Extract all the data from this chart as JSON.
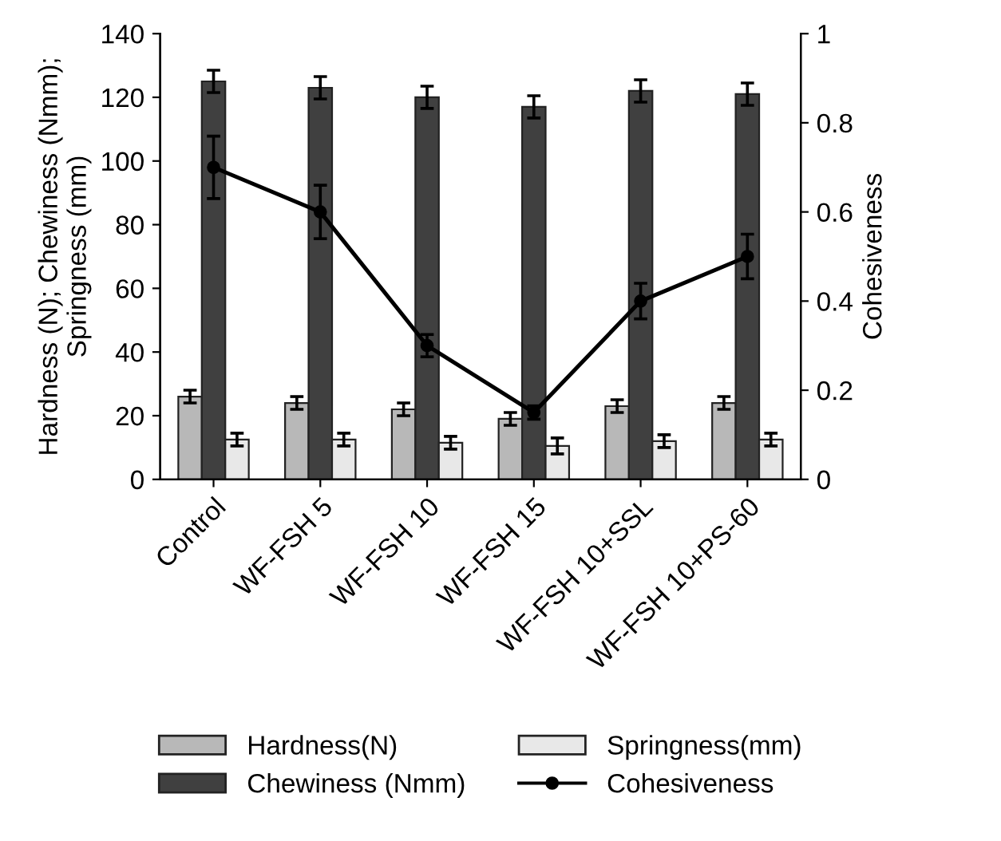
{
  "chart_data": {
    "type": "bar",
    "categories": [
      "Control",
      "WF-FSH 5",
      "WF-FSH 10",
      "WF-FSH 15",
      "WF-FSH 10+SSL",
      "WF-FSH 10+PS-60"
    ],
    "series": [
      {
        "name": "Hardness(N)",
        "color": "#b8b8b8",
        "values": [
          26,
          24,
          22,
          19,
          23,
          24
        ],
        "errors": [
          2,
          2,
          2,
          2,
          2,
          2
        ]
      },
      {
        "name": "Chewiness (Nmm)",
        "color": "#404040",
        "values": [
          125,
          123,
          120,
          117,
          122,
          121
        ],
        "errors": [
          3.5,
          3.5,
          3.5,
          3.5,
          3.5,
          3.5
        ]
      },
      {
        "name": "Springness(mm)",
        "color": "#e8e8e8",
        "values": [
          12.5,
          12.5,
          11.5,
          10.5,
          12,
          12.5
        ],
        "errors": [
          2,
          2,
          2,
          2.5,
          2,
          2
        ]
      },
      {
        "name": "Cohesiveness",
        "color": "#000000",
        "type": "line",
        "axis": "y2",
        "marker": "circle",
        "values": [
          0.7,
          0.6,
          0.3,
          0.15,
          0.4,
          0.5
        ],
        "errors": [
          0.07,
          0.06,
          0.025,
          0.015,
          0.04,
          0.05
        ]
      }
    ],
    "ylabel": "Hardness (N); Chewiness (Nmm); Springness (mm)",
    "y2label": "Cohesiveness",
    "ylim": [
      0,
      140
    ],
    "yticks": [
      0,
      20,
      40,
      60,
      80,
      100,
      120,
      140
    ],
    "y2lim": [
      0,
      1
    ],
    "y2ticks": [
      0,
      0.2,
      0.4,
      0.6,
      0.8,
      1
    ],
    "legend": "bottom",
    "grid": false
  }
}
